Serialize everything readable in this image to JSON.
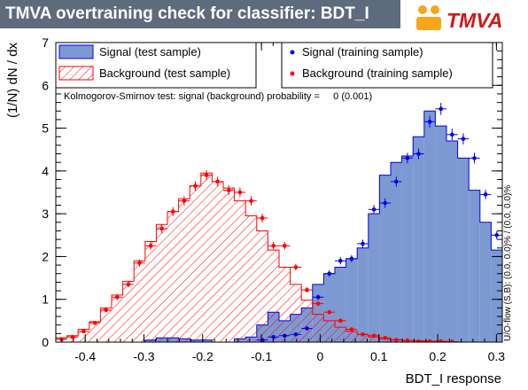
{
  "banner": {
    "title": "TMVA overtraining check for classifier: BDT_I"
  },
  "logo": {
    "text": "TMVA"
  },
  "chart_data": {
    "type": "histogram",
    "xlabel": "BDT_I response",
    "ylabel": "(1/N) dN / dx",
    "xlim": [
      -0.45,
      0.31
    ],
    "ylim": [
      0,
      7
    ],
    "x_ticks": [
      "-0.4",
      "-0.3",
      "-0.2",
      "-0.1",
      "0",
      "0.1",
      "0.2",
      "0.3"
    ],
    "y_ticks": [
      "0",
      "1",
      "2",
      "3",
      "4",
      "5",
      "6",
      "7"
    ],
    "bin_edges_start": -0.45,
    "bin_width": 0.019,
    "legend": {
      "signal_test": "Signal (test sample)",
      "background_test": "Background (test sample)",
      "signal_train": "Signal (training sample)",
      "background_train": "Background (training sample)"
    },
    "ks_text": "Kolmogorov-Smirnov test: signal (background) probability =     0 (0.001)",
    "overflow_text": "U/O-flow (S,B): (0.0, 0.0)% / (0.0, 0.0)%",
    "colors": {
      "signal_fill": "#7d99d1",
      "signal_line": "#0000ee",
      "background": "#ff0000"
    },
    "series": [
      {
        "name": "Signal (test sample)",
        "values": [
          0,
          0,
          0,
          0,
          0,
          0,
          0,
          0,
          0.05,
          0.1,
          0.1,
          0.08,
          0.05,
          0.05,
          0,
          0,
          0.08,
          0.12,
          0.4,
          0.7,
          0.5,
          0.65,
          0.8,
          1.35,
          1.6,
          1.75,
          1.95,
          2.2,
          3,
          3.9,
          4.2,
          4.35,
          4.8,
          5.4,
          5.05,
          4.7,
          4.3,
          3.55,
          2.8,
          2.15,
          1.55,
          0.75
        ]
      },
      {
        "name": "Signal (training sample)",
        "values": [
          0,
          0,
          0,
          0,
          0,
          0,
          0,
          0,
          0,
          0,
          0,
          0,
          0,
          0,
          0,
          0,
          0,
          0,
          0.05,
          0.12,
          0.15,
          0.18,
          0.32,
          1.05,
          1.6,
          1.9,
          1.95,
          2.3,
          3.1,
          3.25,
          3.75,
          4.3,
          4.4,
          5.15,
          5.45,
          4.85,
          4.75,
          4.3,
          3.45,
          2.5,
          1.7,
          0.8
        ]
      },
      {
        "name": "Background (test sample)",
        "values": [
          0.1,
          0.15,
          0.3,
          0.48,
          0.8,
          1.1,
          1.42,
          1.9,
          2.35,
          2.75,
          3.05,
          3.35,
          3.65,
          3.95,
          3.75,
          3.6,
          3.3,
          2.95,
          2.6,
          2.15,
          1.75,
          1.35,
          0.98,
          0.65,
          0.5,
          0.35,
          0.25,
          0.18,
          0.12,
          0.08,
          0.06,
          0.04,
          0.03,
          0.02,
          0.02,
          0.01,
          0,
          0,
          0,
          0,
          0,
          0
        ]
      },
      {
        "name": "Background (training sample)",
        "values": [
          0.07,
          0.12,
          0.25,
          0.45,
          0.75,
          1.05,
          1.35,
          1.85,
          2.25,
          2.65,
          3.05,
          3.3,
          3.65,
          3.9,
          3.75,
          3.55,
          3.5,
          3.3,
          2.9,
          2.25,
          2.25,
          1.75,
          1.22,
          0.9,
          0.7,
          0.5,
          0.3,
          0.18,
          0.15,
          0.1,
          0.05,
          0.04,
          0.02,
          0.02,
          0.02,
          0.01,
          0,
          0,
          0,
          0,
          0,
          0
        ]
      }
    ]
  }
}
